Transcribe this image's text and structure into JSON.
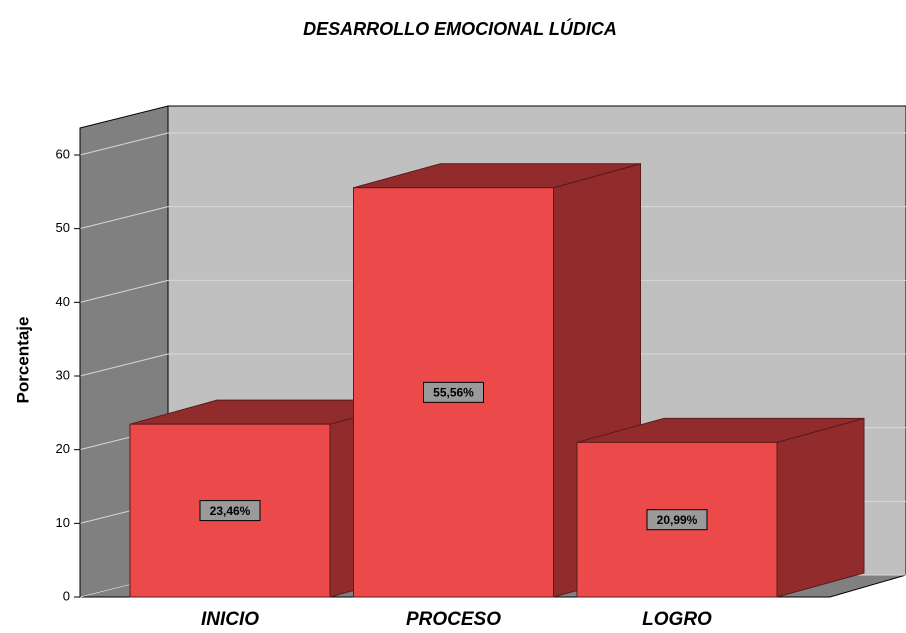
{
  "chart_data": {
    "type": "bar3d",
    "title": "DESARROLLO EMOCIONAL LÚDICA",
    "y_label": "Porcentaje",
    "categories": [
      "INICIO",
      "PROCESO",
      "LOGRO"
    ],
    "values": [
      23.46,
      55.56,
      20.99
    ],
    "value_labels": [
      "23,46%",
      "55,56%",
      "20,99%"
    ],
    "color": "#ec4a4a",
    "side_color": "#922c2c",
    "ylim": [
      0,
      60
    ],
    "yticks": [
      0,
      10,
      20,
      30,
      40,
      50,
      60
    ],
    "grid": true
  }
}
